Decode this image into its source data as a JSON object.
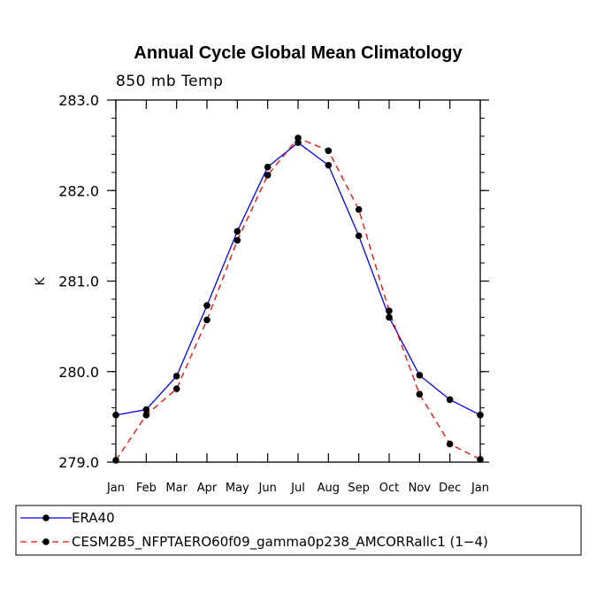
{
  "chart_data": {
    "type": "line",
    "title": "Annual Cycle Global Mean Climatology",
    "subtitle": "850 mb Temp",
    "xlabel": "",
    "ylabel": "K",
    "categories": [
      "Jan",
      "Feb",
      "Mar",
      "Apr",
      "May",
      "Jun",
      "Jul",
      "Aug",
      "Sep",
      "Oct",
      "Nov",
      "Dec",
      "Jan"
    ],
    "ylim": [
      279.0,
      283.0
    ],
    "yticks": [
      279.0,
      280.0,
      281.0,
      282.0,
      283.0
    ],
    "ytick_labels": [
      "279.0",
      "280.0",
      "281.0",
      "282.0",
      "283.0"
    ],
    "minor_ytick_step": 0.2,
    "grid": false,
    "legend_position": "bottom-left",
    "series": [
      {
        "name": "ERA40",
        "color": "#0000ff",
        "dash": "solid",
        "marker": "circle",
        "values": [
          279.52,
          279.58,
          279.95,
          280.73,
          281.55,
          282.26,
          282.53,
          282.28,
          281.5,
          280.6,
          279.96,
          279.69,
          279.52
        ]
      },
      {
        "name": "CESM2B5_NFPTAERO60f09_gamma0p238_AMCORRallc1 (1−4)",
        "color": "#ff0000",
        "dash": "dashed",
        "marker": "circle",
        "values": [
          279.02,
          279.52,
          279.81,
          280.57,
          281.45,
          282.17,
          282.58,
          282.44,
          281.79,
          280.67,
          279.75,
          279.2,
          279.03
        ]
      }
    ]
  }
}
